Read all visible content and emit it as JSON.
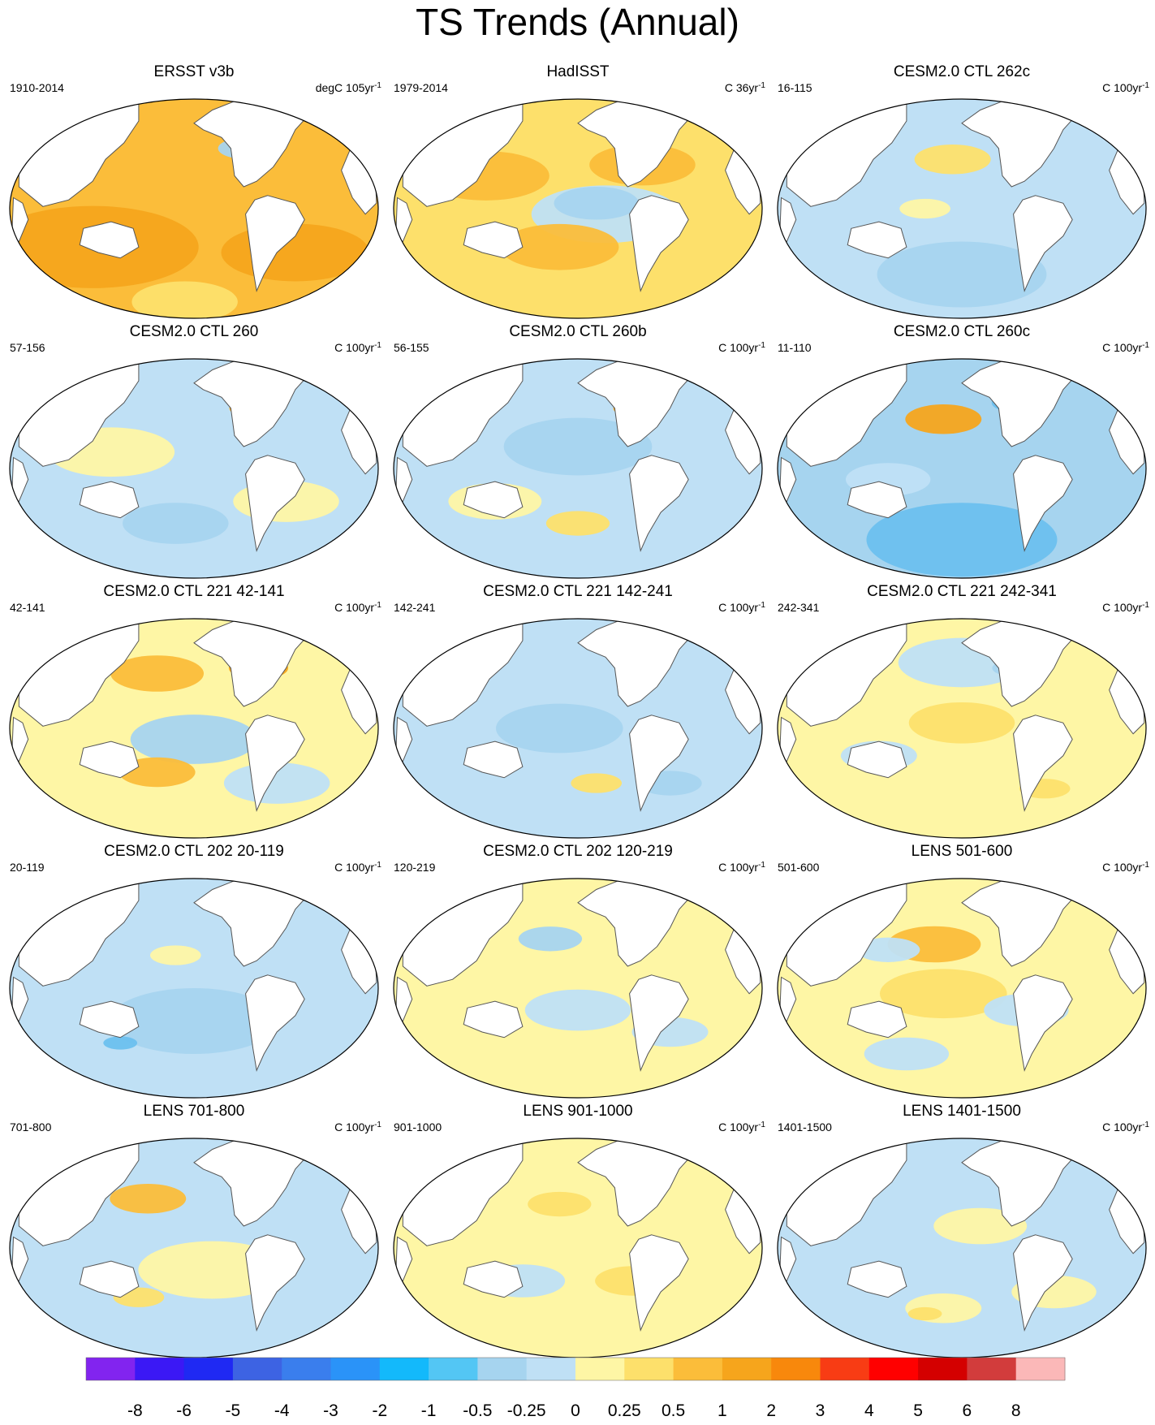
{
  "title": "TS Trends (Annual)",
  "panels": [
    {
      "title": "ERSST v3b",
      "left": "1910-2014",
      "unit": "degC 105yr",
      "exp": "-1",
      "fill": "#fbbd3a",
      "patches": [
        [
          "#f6a51c",
          -0.55,
          0.35,
          0.5
        ],
        [
          "#f6a51c",
          0.55,
          0.4,
          0.35
        ],
        [
          "#a6d4ef",
          0.28,
          -0.55,
          0.13
        ],
        [
          "#fde06b",
          -0.05,
          0.85,
          0.25
        ]
      ]
    },
    {
      "title": "HadISST",
      "left": "1979-2014",
      "unit": "C 36yr",
      "exp": "-1",
      "fill": "#fde06b",
      "patches": [
        [
          "#bfe0f5",
          0.15,
          0.05,
          0.35
        ],
        [
          "#fbbd3a",
          -0.5,
          -0.3,
          0.3
        ],
        [
          "#fbbd3a",
          0.35,
          -0.4,
          0.25
        ],
        [
          "#fbbd3a",
          -0.1,
          0.35,
          0.28
        ],
        [
          "#a6d4ef",
          0.1,
          -0.05,
          0.2
        ]
      ]
    },
    {
      "title": "CESM2.0 CTL 262c",
      "left": "16-115",
      "unit": "C 100yr",
      "exp": "-1",
      "fill": "#bfe0f5",
      "patches": [
        [
          "#fde06b",
          -0.05,
          -0.45,
          0.18
        ],
        [
          "#a6d4ef",
          0.0,
          0.6,
          0.4
        ],
        [
          "#6cc0ee",
          0.28,
          -0.65,
          0.1
        ],
        [
          "#fef6a5",
          -0.2,
          0.0,
          0.12
        ]
      ]
    },
    {
      "title": "CESM2.0 CTL 260",
      "left": "57-156",
      "unit": "C 100yr",
      "exp": "-1",
      "fill": "#bfe0f5",
      "patches": [
        [
          "#fef6a5",
          -0.45,
          -0.15,
          0.3
        ],
        [
          "#f6a51c",
          0.33,
          -0.55,
          0.12
        ],
        [
          "#fef6a5",
          0.5,
          0.3,
          0.25
        ],
        [
          "#a6d4ef",
          -0.1,
          0.5,
          0.25
        ]
      ]
    },
    {
      "title": "CESM2.0 CTL 260b",
      "left": "56-155",
      "unit": "C 100yr",
      "exp": "-1",
      "fill": "#bfe0f5",
      "patches": [
        [
          "#a6d4ef",
          0.0,
          -0.2,
          0.35
        ],
        [
          "#fef6a5",
          -0.45,
          0.3,
          0.22
        ],
        [
          "#f6a51c",
          0.33,
          -0.55,
          0.12
        ],
        [
          "#fde06b",
          0.0,
          0.5,
          0.15
        ]
      ]
    },
    {
      "title": "CESM2.0 CTL 260c",
      "left": "11-110",
      "unit": "C 100yr",
      "exp": "-1",
      "fill": "#a6d4ef",
      "patches": [
        [
          "#f6a51c",
          -0.1,
          -0.45,
          0.18
        ],
        [
          "#6cc0ee",
          0.0,
          0.65,
          0.45
        ],
        [
          "#6cc0ee",
          0.3,
          -0.6,
          0.12
        ],
        [
          "#bfe0f5",
          -0.4,
          0.1,
          0.2
        ]
      ]
    },
    {
      "title": "CESM2.0 CTL 221 42-141",
      "left": "42-141",
      "unit": "C 100yr",
      "exp": "-1",
      "fill": "#fef6a5",
      "patches": [
        [
          "#fbbd3a",
          -0.2,
          -0.5,
          0.22
        ],
        [
          "#f6a51c",
          0.35,
          -0.55,
          0.14
        ],
        [
          "#a6d4ef",
          0.0,
          0.1,
          0.3
        ],
        [
          "#fbbd3a",
          -0.2,
          0.4,
          0.18
        ],
        [
          "#bfe0f5",
          0.45,
          0.5,
          0.25
        ]
      ]
    },
    {
      "title": "CESM2.0 CTL 221 142-241",
      "left": "142-241",
      "unit": "C 100yr",
      "exp": "-1",
      "fill": "#bfe0f5",
      "patches": [
        [
          "#6cc0ee",
          0.33,
          -0.6,
          0.12
        ],
        [
          "#a6d4ef",
          -0.1,
          0.0,
          0.3
        ],
        [
          "#fde06b",
          0.1,
          0.5,
          0.12
        ],
        [
          "#a6d4ef",
          0.5,
          0.5,
          0.15
        ]
      ]
    },
    {
      "title": "CESM2.0 CTL 221 242-341",
      "left": "242-341",
      "unit": "C 100yr",
      "exp": "-1",
      "fill": "#fef6a5",
      "patches": [
        [
          "#bfe0f5",
          0.0,
          -0.6,
          0.3
        ],
        [
          "#fde06b",
          0.0,
          -0.05,
          0.25
        ],
        [
          "#bfe0f5",
          -0.45,
          0.25,
          0.18
        ],
        [
          "#a6d4ef",
          0.28,
          -0.55,
          0.1
        ],
        [
          "#fde06b",
          0.45,
          0.55,
          0.12
        ]
      ]
    },
    {
      "title": "CESM2.0 CTL 202 20-119",
      "left": "20-119",
      "unit": "C 100yr",
      "exp": "-1",
      "fill": "#bfe0f5",
      "patches": [
        [
          "#a6d4ef",
          0.0,
          0.3,
          0.4
        ],
        [
          "#6cc0ee",
          0.3,
          -0.6,
          0.1
        ],
        [
          "#fef6a5",
          -0.1,
          -0.3,
          0.12
        ],
        [
          "#6cc0ee",
          -0.4,
          0.5,
          0.08
        ]
      ]
    },
    {
      "title": "CESM2.0 CTL 202 120-219",
      "left": "120-219",
      "unit": "C 100yr",
      "exp": "-1",
      "fill": "#fef6a5",
      "patches": [
        [
          "#a6d4ef",
          -0.15,
          -0.45,
          0.15
        ],
        [
          "#f6a51c",
          0.35,
          -0.55,
          0.12
        ],
        [
          "#bfe0f5",
          0.0,
          0.2,
          0.25
        ],
        [
          "#bfe0f5",
          0.5,
          0.4,
          0.18
        ]
      ]
    },
    {
      "title": "LENS 501-600",
      "left": "501-600",
      "unit": "C 100yr",
      "exp": "-1",
      "fill": "#fef6a5",
      "patches": [
        [
          "#fbbd3a",
          -0.15,
          -0.4,
          0.22
        ],
        [
          "#bfe0f5",
          -0.4,
          -0.35,
          0.15
        ],
        [
          "#fde06b",
          -0.1,
          0.05,
          0.3
        ],
        [
          "#bfe0f5",
          0.35,
          0.2,
          0.2
        ],
        [
          "#bfe0f5",
          -0.3,
          0.6,
          0.2
        ]
      ]
    },
    {
      "title": "LENS 701-800",
      "left": "701-800",
      "unit": "C 100yr",
      "exp": "-1",
      "fill": "#bfe0f5",
      "patches": [
        [
          "#fbbd3a",
          -0.25,
          -0.45,
          0.18
        ],
        [
          "#fef6a5",
          0.1,
          0.2,
          0.35
        ],
        [
          "#6cc0ee",
          0.3,
          -0.6,
          0.08
        ],
        [
          "#fde06b",
          -0.3,
          0.45,
          0.12
        ]
      ]
    },
    {
      "title": "LENS 901-1000",
      "left": "901-1000",
      "unit": "C 100yr",
      "exp": "-1",
      "fill": "#fef6a5",
      "patches": [
        [
          "#fbbd3a",
          0.35,
          -0.7,
          0.1
        ],
        [
          "#fde06b",
          -0.1,
          -0.4,
          0.15
        ],
        [
          "#bfe0f5",
          -0.3,
          0.3,
          0.2
        ],
        [
          "#fde06b",
          0.3,
          0.3,
          0.18
        ]
      ]
    },
    {
      "title": "LENS 1401-1500",
      "left": "1401-1500",
      "unit": "C 100yr",
      "exp": "-1",
      "fill": "#bfe0f5",
      "patches": [
        [
          "#fef6a5",
          0.1,
          -0.2,
          0.22
        ],
        [
          "#fef6a5",
          0.5,
          0.4,
          0.2
        ],
        [
          "#fef6a5",
          -0.1,
          0.55,
          0.18
        ],
        [
          "#fde06b",
          -0.2,
          0.6,
          0.08
        ]
      ]
    }
  ],
  "colorbar": {
    "colors": [
      "#8224ef",
      "#3b18f5",
      "#1f29f3",
      "#3d63e3",
      "#3a7eed",
      "#2a93f8",
      "#13b9fb",
      "#53c6f4",
      "#a6d4ef",
      "#bfe0f5",
      "#fef6a5",
      "#fde06b",
      "#fbbd3a",
      "#f6a51c",
      "#f8880c",
      "#f83c14",
      "#ff0000",
      "#d40000",
      "#d23c3c",
      "#fbb8b8"
    ],
    "labels": [
      "-8",
      "-6",
      "-5",
      "-4",
      "-3",
      "-2",
      "-1",
      "-0.5",
      "-0.25",
      "0",
      "0.25",
      "0.5",
      "1",
      "2",
      "3",
      "4",
      "5",
      "6",
      "8"
    ]
  }
}
